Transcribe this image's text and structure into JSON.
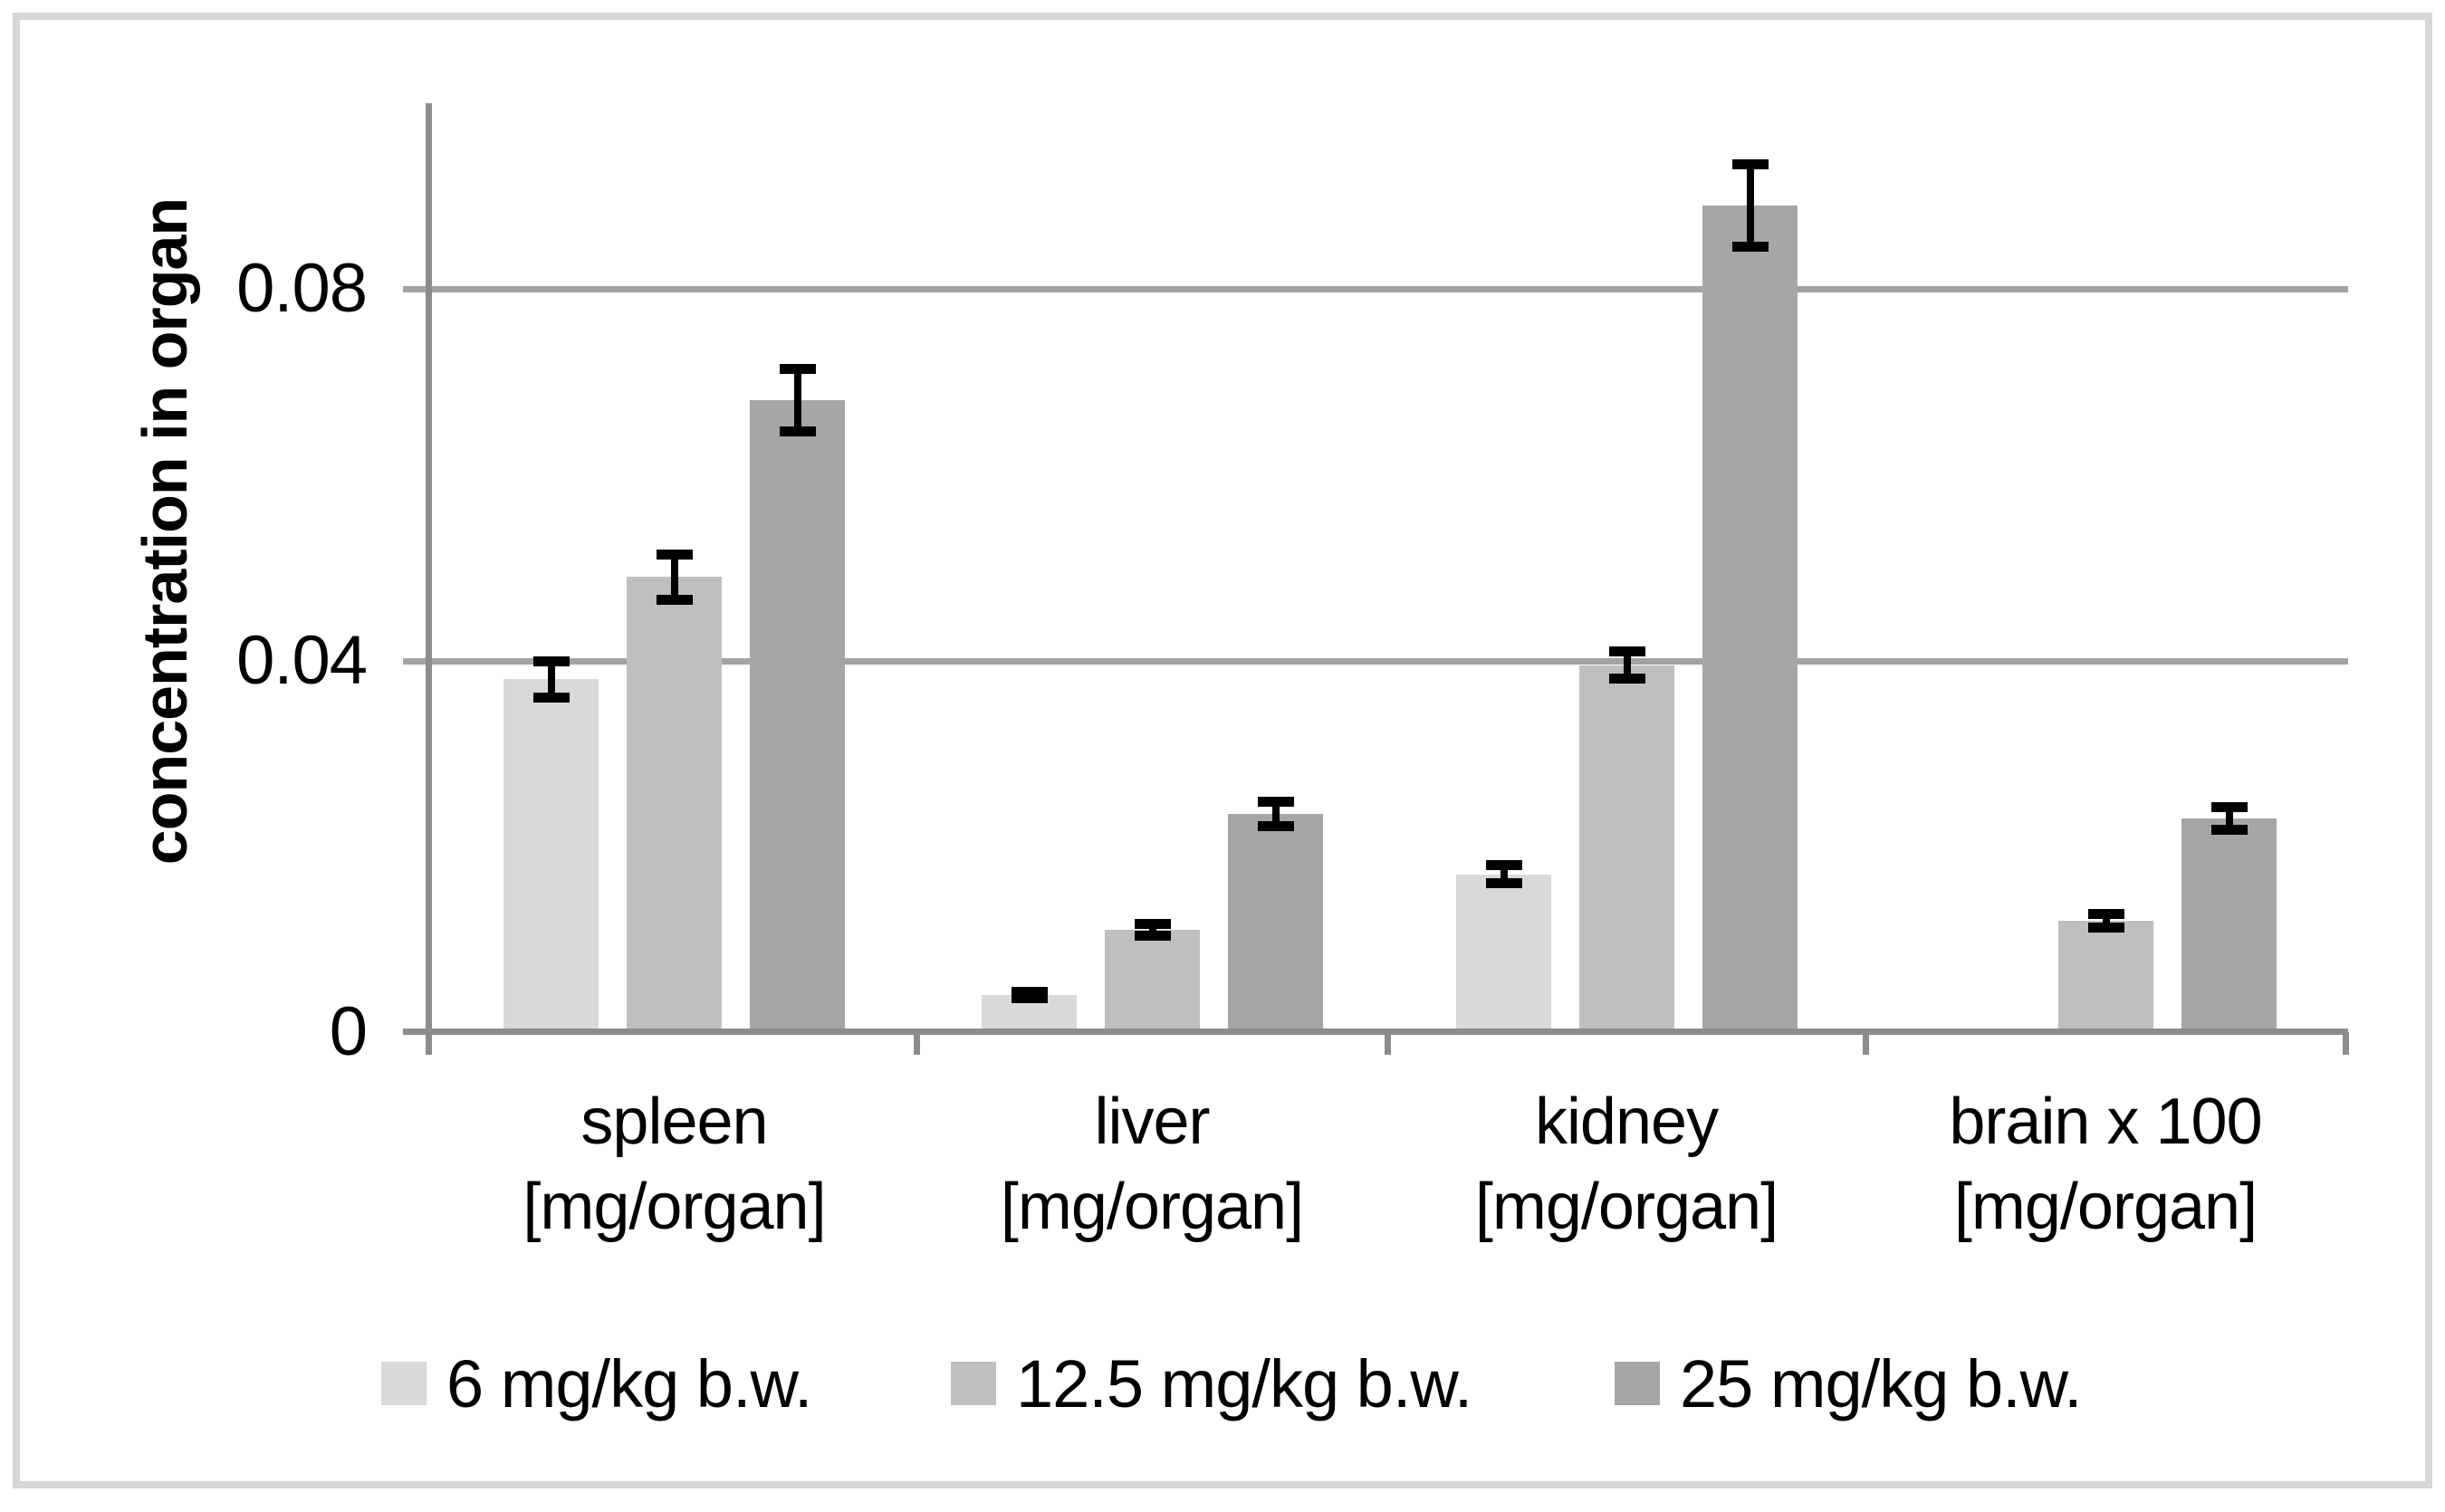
{
  "figure": {
    "background_color": "#ffffff",
    "border_color": "#d7d7d7",
    "axis_color": "#8c8c8c",
    "gridline_color": "#a3a3a3",
    "error_bar_color": "#000000"
  },
  "y_axis": {
    "title": "concentration in organ",
    "tick_labels": [
      "0",
      "0.04",
      "0.08"
    ],
    "tick_values": [
      0,
      0.04,
      0.08
    ],
    "gridline_values": [
      0.04,
      0.08
    ],
    "max": 0.1
  },
  "chart_data": {
    "type": "bar",
    "title": "",
    "xlabel": "",
    "ylabel": "concentration in organ",
    "ylim": [
      0,
      0.1
    ],
    "grid": true,
    "legend_position": "bottom",
    "categories": [
      {
        "line1": "spleen",
        "line2": "[mg/organ]"
      },
      {
        "line1": "liver",
        "line2": "[mg/organ]"
      },
      {
        "line1": "kidney",
        "line2": "[mg/organ]"
      },
      {
        "line1": "brain x 100",
        "line2": "[mg/organ]"
      }
    ],
    "series": [
      {
        "name": "6 mg/kg b.w.",
        "color": "#d9d9d9",
        "values": [
          0.038,
          0.004,
          0.017,
          0
        ],
        "errors": [
          0.002,
          0.0004,
          0.001,
          0
        ]
      },
      {
        "name": "12.5 mg/kg b.w.",
        "color": "#bfbfbf",
        "values": [
          0.049,
          0.011,
          0.0395,
          0.012
        ],
        "errors": [
          0.0025,
          0.0007,
          0.0015,
          0.0008
        ]
      },
      {
        "name": "25 mg/kg b.w.",
        "color": "#a6a6a6",
        "values": [
          0.068,
          0.0235,
          0.089,
          0.023
        ],
        "errors": [
          0.0034,
          0.0014,
          0.0045,
          0.0013
        ]
      }
    ]
  }
}
